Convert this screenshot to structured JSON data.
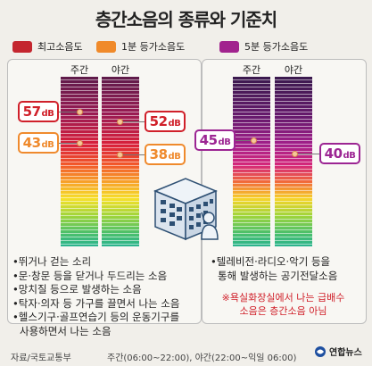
{
  "title": "층간소음의 종류와 기준치",
  "legend": [
    {
      "label": "최고소음도",
      "color": "#c4262f"
    },
    {
      "label": "1분 등가소음도",
      "color": "#f08a2a"
    },
    {
      "label": "5분 등가소음도",
      "color": "#a1238e"
    }
  ],
  "chart_data": [
    {
      "type": "bar",
      "categories": [
        "주간",
        "야간"
      ],
      "series": [
        {
          "name": "최고소음도",
          "values": [
            57,
            52
          ],
          "labels": [
            "57dB",
            "52dB"
          ]
        },
        {
          "name": "1분 등가소음도",
          "values": [
            43,
            38
          ],
          "labels": [
            "43dB",
            "38dB"
          ]
        }
      ],
      "unit": "dB"
    },
    {
      "type": "bar",
      "categories": [
        "주간",
        "야간"
      ],
      "series": [
        {
          "name": "5분 등가소음도",
          "values": [
            45,
            40
          ],
          "labels": [
            "45dB",
            "40dB"
          ]
        }
      ],
      "unit": "dB"
    }
  ],
  "labels": {
    "day": "주간",
    "night": "야간",
    "db_unit": "dB",
    "v57": "57",
    "v52": "52",
    "v43": "43",
    "v38": "38",
    "v45": "45",
    "v40": "40"
  },
  "direct_noise_examples": [
    "•뛰거나 걷는 소리",
    "•문·창문 등을 닫거나 두드리는 소음",
    "•망치질 등으로 발생하는 소음",
    "•탁자·의자 등 가구를 끌면서 나는 소음",
    "•헬스기구·골프연습기 등의 운동기구를",
    "사용하면서 나는 소음"
  ],
  "airborne_noise_examples": [
    "•텔레비전·라디오·악기 등을",
    "통해 발생하는 공기전달소음"
  ],
  "note": [
    "※욕실화장실에서 나는 급배수",
    "소음은 층간소음 아님"
  ],
  "footer": {
    "source": "자료/국토교통부",
    "time_note": "주간(06:00~22:00), 야간(22:00~익일 06:00)",
    "agency": "연합뉴스"
  }
}
